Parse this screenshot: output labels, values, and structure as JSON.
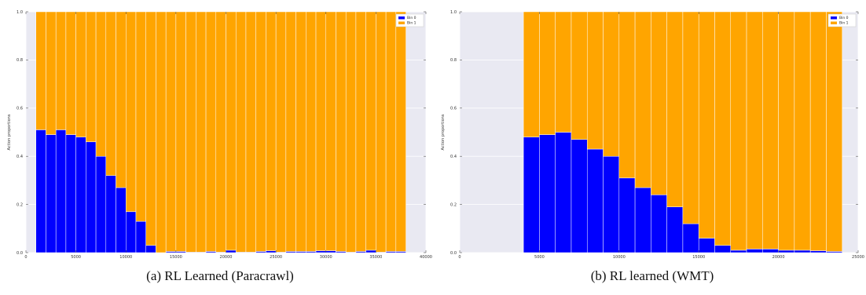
{
  "captions": {
    "a": "(a) RL Learned (Paracrawl)",
    "b": "(b) RL learned (WMT)"
  },
  "colors": {
    "bin0": "#0000ff",
    "bin1": "#ffa500",
    "bg": "#e9e9f2",
    "grid": "#ffffff"
  },
  "chart_data": [
    {
      "type": "bar",
      "stacked": true,
      "xlim": [
        0,
        40000
      ],
      "ylim": [
        0,
        1.0
      ],
      "xticks": [
        0,
        5000,
        10000,
        15000,
        20000,
        25000,
        30000,
        35000,
        40000
      ],
      "yticks": [
        0.0,
        0.2,
        0.4,
        0.6,
        0.8,
        1.0
      ],
      "ylabel": "Action proportions",
      "xlabel": "",
      "legend_position": "top-right",
      "bin_width": 1000,
      "x": [
        1000,
        2000,
        3000,
        4000,
        5000,
        6000,
        7000,
        8000,
        9000,
        10000,
        11000,
        12000,
        13000,
        14000,
        15000,
        16000,
        17000,
        18000,
        19000,
        20000,
        21000,
        22000,
        23000,
        24000,
        25000,
        26000,
        27000,
        28000,
        29000,
        30000,
        31000,
        32000,
        33000,
        34000,
        35000,
        36000,
        37000
      ],
      "series": [
        {
          "name": "Bin 0",
          "values": [
            0.51,
            0.49,
            0.51,
            0.49,
            0.48,
            0.46,
            0.4,
            0.32,
            0.27,
            0.17,
            0.13,
            0.03,
            0.0,
            0.005,
            0.005,
            0.002,
            0.002,
            0.005,
            0.002,
            0.01,
            0.002,
            0.002,
            0.005,
            0.008,
            0.002,
            0.005,
            0.005,
            0.005,
            0.008,
            0.008,
            0.005,
            0.002,
            0.005,
            0.01,
            0.002,
            0.005,
            0.005
          ]
        },
        {
          "name": "Bin 1",
          "values": [
            0.49,
            0.51,
            0.49,
            0.51,
            0.52,
            0.54,
            0.6,
            0.68,
            0.73,
            0.83,
            0.87,
            0.97,
            1.0,
            0.995,
            0.995,
            0.998,
            0.998,
            0.995,
            0.998,
            0.99,
            0.998,
            0.998,
            0.995,
            0.992,
            0.998,
            0.995,
            0.995,
            0.995,
            0.992,
            0.992,
            0.995,
            0.998,
            0.995,
            0.99,
            0.998,
            0.995,
            0.995
          ]
        }
      ]
    },
    {
      "type": "bar",
      "stacked": true,
      "xlim": [
        0,
        25000
      ],
      "ylim": [
        0,
        1.0
      ],
      "xticks": [
        0,
        5000,
        10000,
        15000,
        20000,
        25000
      ],
      "yticks": [
        0.0,
        0.2,
        0.4,
        0.6,
        0.8,
        1.0
      ],
      "ylabel": "Action proportions",
      "xlabel": "",
      "legend_position": "top-right",
      "bin_width": 1000,
      "x": [
        4000,
        5000,
        6000,
        7000,
        8000,
        9000,
        10000,
        11000,
        12000,
        13000,
        14000,
        15000,
        16000,
        17000,
        18000,
        19000,
        20000,
        21000,
        22000,
        23000
      ],
      "series": [
        {
          "name": "Bin 0",
          "values": [
            0.48,
            0.49,
            0.5,
            0.47,
            0.43,
            0.4,
            0.31,
            0.27,
            0.24,
            0.19,
            0.12,
            0.06,
            0.03,
            0.01,
            0.015,
            0.015,
            0.01,
            0.01,
            0.008,
            0.005
          ]
        },
        {
          "name": "Bin 1",
          "values": [
            0.52,
            0.51,
            0.5,
            0.53,
            0.57,
            0.6,
            0.69,
            0.73,
            0.76,
            0.81,
            0.88,
            0.94,
            0.97,
            0.99,
            0.985,
            0.985,
            0.99,
            0.99,
            0.992,
            0.995
          ]
        }
      ]
    }
  ]
}
